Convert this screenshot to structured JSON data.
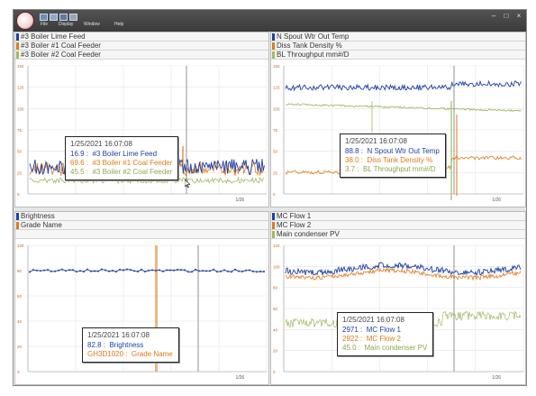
{
  "window": {
    "menu": [
      "File",
      "Display",
      "Window",
      "Help"
    ],
    "controls": [
      "–",
      "□",
      "×"
    ],
    "icons": [
      "app-logo-icon",
      "open-icon",
      "save-icon",
      "save-as-icon",
      "print-icon"
    ]
  },
  "colors": {
    "blue": "#1d3fa8",
    "orange": "#e07a17",
    "green": "#9fba62",
    "grid": "#e3e3e3",
    "axis": "#c26b2a"
  },
  "panels": [
    {
      "legend": [
        "#3 Boiler Lime Feed",
        "#3 Boiler #1 Coal Feeder",
        "#3 Boiler #2 Coal Feeder"
      ],
      "y_ticks": [
        "150",
        "125",
        "100",
        "75",
        "50",
        "25",
        "0"
      ],
      "x_label": "1/26",
      "tooltip": {
        "timestamp": "1/25/2021 16:07:08",
        "rows": [
          {
            "value": "16.9",
            "label": "#3 Boiler Lime Feed"
          },
          {
            "value": "69.6",
            "label": "#3 Boiler #1 Coal Feeder"
          },
          {
            "value": "45.5",
            "label": "#3 Boiler #2 Coal Feeder"
          }
        ]
      }
    },
    {
      "legend": [
        "N Spout Wtr Out Temp",
        "Diss Tank Density %",
        "BL Throughput mm#/D"
      ],
      "y_ticks": [
        "150",
        "125",
        "100",
        "75",
        "50",
        "25",
        "0"
      ],
      "x_label": "1/26",
      "tooltip": {
        "timestamp": "1/25/2021 16:07:08",
        "rows": [
          {
            "value": "88.8",
            "label": "N Spout Wtr Out Temp"
          },
          {
            "value": "38.0",
            "label": "Diss Tank Density %"
          },
          {
            "value": "3.7",
            "label": "BL Throughput mm#/D"
          }
        ]
      }
    },
    {
      "legend": [
        "Brightness",
        "Grade Name"
      ],
      "y_ticks": [
        "100",
        "80",
        "60",
        "40",
        "20",
        "0"
      ],
      "x_label": "1/26",
      "tooltip": {
        "timestamp": "1/25/2021 16:07:08",
        "rows": [
          {
            "value": "82.8",
            "label": "Brightness"
          },
          {
            "value": "GH3D1020",
            "label": "Grade Name"
          }
        ]
      }
    },
    {
      "legend": [
        "MC Flow 1",
        "MC Flow 2",
        "Main condenser PV"
      ],
      "y_ticks": [
        "120",
        "100",
        "80",
        "60",
        "40",
        "20",
        "0"
      ],
      "x_label": "1/26",
      "tooltip": {
        "timestamp": "1/25/2021 16:07:08",
        "rows": [
          {
            "value": "2971",
            "label": "MC Flow 1"
          },
          {
            "value": "2922",
            "label": "MC Flow 2"
          },
          {
            "value": "45.0",
            "label": "Main condenser PV"
          }
        ]
      }
    }
  ]
}
